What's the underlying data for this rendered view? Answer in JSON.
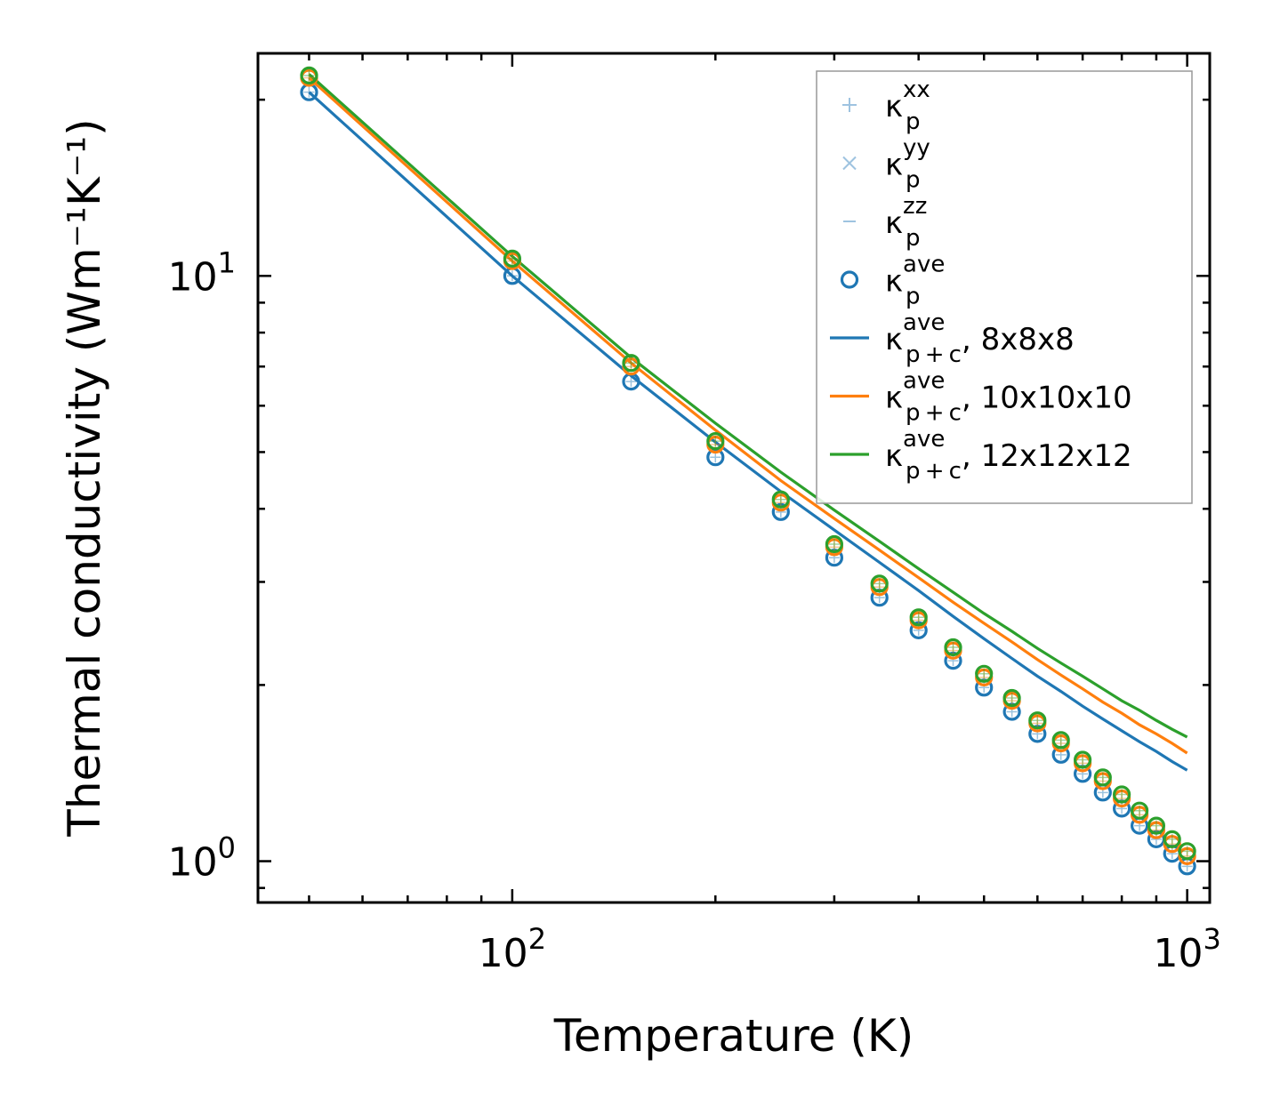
{
  "chart_data": {
    "type": "line",
    "scale": "log-log",
    "xlabel": "Temperature (K)",
    "ylabel": "Thermal conductivity (Wm⁻¹K⁻¹)",
    "xlim": [
      42,
      1080
    ],
    "ylim": [
      0.85,
      24
    ],
    "x_major_ticks": [
      {
        "value": 100,
        "base": "10",
        "exp": "2"
      },
      {
        "value": 1000,
        "base": "10",
        "exp": "3"
      }
    ],
    "y_major_ticks": [
      {
        "value": 1,
        "base": "10",
        "exp": "0"
      },
      {
        "value": 10,
        "base": "10",
        "exp": "1"
      }
    ],
    "x": [
      50,
      100,
      150,
      200,
      250,
      300,
      350,
      400,
      450,
      500,
      550,
      600,
      650,
      700,
      750,
      800,
      850,
      900,
      950,
      1000
    ],
    "scatter_series": [
      {
        "name": "kp-8x8x8",
        "color": "#1f77b4",
        "values": [
          20.6,
          10.0,
          6.6,
          4.9,
          3.95,
          3.3,
          2.82,
          2.48,
          2.2,
          1.98,
          1.8,
          1.65,
          1.52,
          1.41,
          1.31,
          1.23,
          1.15,
          1.09,
          1.03,
          0.98
        ]
      },
      {
        "name": "kp-10x10x10",
        "color": "#ff7f0e",
        "values": [
          21.8,
          10.6,
          7.0,
          5.15,
          4.1,
          3.44,
          2.94,
          2.58,
          2.29,
          2.06,
          1.88,
          1.72,
          1.59,
          1.47,
          1.37,
          1.28,
          1.2,
          1.13,
          1.07,
          1.02
        ]
      },
      {
        "name": "kp-12x12x12",
        "color": "#2ca02c",
        "values": [
          22.0,
          10.7,
          7.1,
          5.22,
          4.15,
          3.48,
          2.98,
          2.61,
          2.32,
          2.09,
          1.9,
          1.74,
          1.61,
          1.49,
          1.39,
          1.3,
          1.22,
          1.15,
          1.09,
          1.04
        ]
      }
    ],
    "line_series": [
      {
        "name": "kpc-8x8x8",
        "color": "#1f77b4",
        "values": [
          20.6,
          10.0,
          6.75,
          5.2,
          4.28,
          3.68,
          3.24,
          2.9,
          2.62,
          2.4,
          2.22,
          2.07,
          1.95,
          1.84,
          1.75,
          1.67,
          1.6,
          1.54,
          1.48,
          1.43
        ]
      },
      {
        "name": "kpc-10x10x10",
        "color": "#ff7f0e",
        "values": [
          21.8,
          10.6,
          7.1,
          5.45,
          4.47,
          3.85,
          3.4,
          3.05,
          2.77,
          2.55,
          2.37,
          2.21,
          2.08,
          1.97,
          1.87,
          1.79,
          1.71,
          1.65,
          1.59,
          1.53
        ]
      },
      {
        "name": "kpc-12x12x12",
        "color": "#2ca02c",
        "values": [
          22.1,
          10.8,
          7.25,
          5.6,
          4.62,
          3.98,
          3.52,
          3.16,
          2.88,
          2.65,
          2.47,
          2.31,
          2.18,
          2.07,
          1.97,
          1.88,
          1.81,
          1.74,
          1.68,
          1.63
        ]
      }
    ],
    "legend": {
      "placement": "top-right",
      "entries": [
        {
          "marker": "plus",
          "color": "#9ec3e0",
          "kappa": "κ",
          "sub": "p",
          "sup": "xx",
          "suffix": ""
        },
        {
          "marker": "x",
          "color": "#9ec3e0",
          "kappa": "κ",
          "sub": "p",
          "sup": "yy",
          "suffix": ""
        },
        {
          "marker": "dash",
          "color": "#9ec3e0",
          "kappa": "κ",
          "sub": "p",
          "sup": "zz",
          "suffix": ""
        },
        {
          "marker": "circle",
          "color": "#1f77b4",
          "kappa": "κ",
          "sub": "p",
          "sup": "ave",
          "suffix": ""
        },
        {
          "marker": "line",
          "color": "#1f77b4",
          "kappa": "κ",
          "sub": "p + c",
          "sup": "ave",
          "suffix": ", 8x8x8"
        },
        {
          "marker": "line",
          "color": "#ff7f0e",
          "kappa": "κ",
          "sub": "p + c",
          "sup": "ave",
          "suffix": ", 10x10x10"
        },
        {
          "marker": "line",
          "color": "#2ca02c",
          "kappa": "κ",
          "sub": "p + c",
          "sup": "ave",
          "suffix": ", 12x12x12"
        }
      ]
    }
  }
}
